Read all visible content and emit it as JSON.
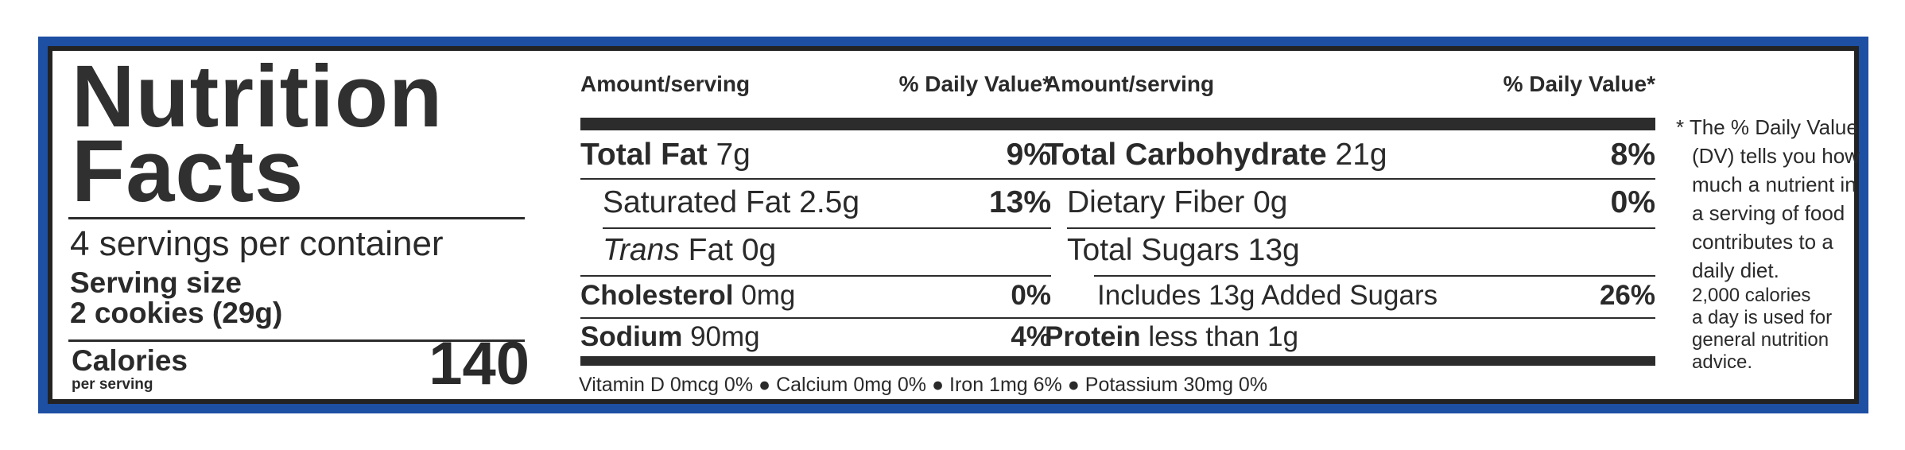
{
  "title_line1": "Nutrition",
  "title_line2": "Facts",
  "servings": "4 servings per container",
  "serving_size_label": "Serving size",
  "serving_size_value": "2 cookies (29g)",
  "calories_label": "Calories",
  "calories_sub": "per serving",
  "calories_value": "140",
  "col_header_amount": "Amount/serving",
  "col_header_dv": "% Daily Value*",
  "col1": {
    "total_fat": {
      "name": "Total Fat",
      "amount": "7g",
      "dv": "9%"
    },
    "sat_fat": {
      "name": "Saturated Fat",
      "amount": "2.5g",
      "dv": "13%"
    },
    "trans_fat": {
      "name": "Trans",
      "amount": "Fat 0g"
    },
    "cholesterol": {
      "name": "Cholesterol",
      "amount": "0mg",
      "dv": "0%"
    },
    "sodium": {
      "name": "Sodium",
      "amount": "90mg",
      "dv": "4%"
    }
  },
  "col2": {
    "total_carb": {
      "name": "Total Carbohydrate",
      "amount": "21g",
      "dv": "8%"
    },
    "fiber": {
      "name": "Dietary Fiber",
      "amount": "0g",
      "dv": "0%"
    },
    "sugars": {
      "name": "Total Sugars",
      "amount": "13g"
    },
    "added_sugars": {
      "name": "Includes 13g Added Sugars",
      "dv": "26%"
    },
    "protein": {
      "name": "Protein",
      "amount": "less than 1g"
    }
  },
  "micros": [
    "Vitamin D 0mcg 0%",
    "Calcium 0mg 0%",
    "Iron 1mg 6%",
    "Potassium 30mg 0%"
  ],
  "footnote": {
    "line1": "* The % Daily Value",
    "line2": "(DV) tells you how",
    "line3": "much a nutrient in",
    "line4": "a serving of food",
    "line5": "contributes to a",
    "line6": "daily diet.",
    "line7": "2,000 calories",
    "line8": "a day is used for",
    "line9": "general nutrition",
    "line10": "advice."
  }
}
